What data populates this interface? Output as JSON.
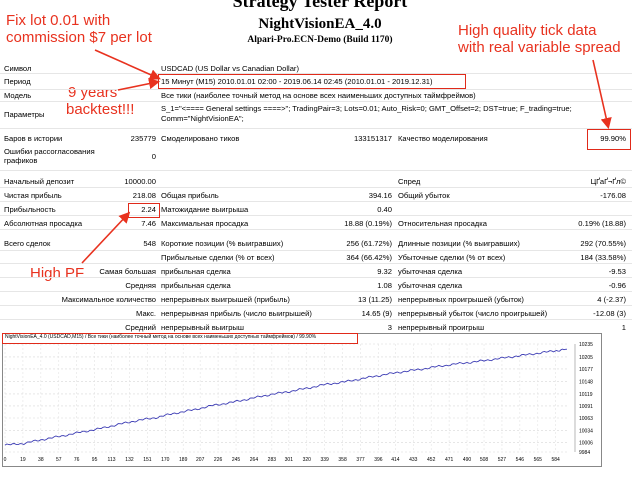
{
  "header": {
    "title": "Strategy Tester Report",
    "name": "NightVisionEA_4.0",
    "server": "Alpari-Pro.ECN-Demo (Build 1170)"
  },
  "annotations": {
    "fix_lot_line1": "Fix lot 0.01 with",
    "fix_lot_line2": "commission $7 per lot",
    "tick_line1": "High quality tick data",
    "tick_line2": "with real variable spread",
    "years_line1": "9 years",
    "years_line2": "backtest!!!",
    "pf": "High PF"
  },
  "report": {
    "symbol_label": "Символ",
    "symbol_value": "USDCAD (US Dollar vs Canadian Dollar)",
    "period_label": "Период",
    "period_value": "15 Минут (M15) 2010.01.01 02:00 - 2019.06.14 02:45 (2010.01.01 - 2019.12.31)",
    "model_label": "Модель",
    "model_value": "Все тики (наиболее точный метод на основе всех наименьших доступных таймфреймов)",
    "params_label": "Параметры",
    "params_value_line1": "S_1=\"<==== General settings ====>\"; TradingPair=3; Lots=0.01; Auto_Risk=0; GMT_Offset=2; DST=true; F_trading=true;",
    "params_value_line2": "Comm=\"NightVisionEA\";",
    "bars_label": "Баров в истории",
    "bars_value": "235779",
    "ticks_label": "Смоделировано тиков",
    "ticks_value": "133151317",
    "quality_label": "Качество моделирования",
    "quality_value": "99.90%",
    "errors_label_line1": "Ошибки рассогласования",
    "errors_label_line2": "графиков",
    "errors_value": "0",
    "deposit_label": "Начальный депозит",
    "deposit_value": "10000.00",
    "spread_label": "Спред",
    "spread_value": "ЦҐаҐ¬Ґ­­л©",
    "net_label": "Чистая прибыль",
    "net_value": "218.08",
    "gross_profit_label": "Общая прибыль",
    "gross_profit_value": "394.16",
    "gross_loss_label": "Общий убыток",
    "gross_loss_value": "-176.08",
    "pf_label": "Прибыльность",
    "pf_value": "2.24",
    "expected_label": "Матожидание выигрыша",
    "expected_value": "0.40",
    "abs_dd_label": "Абсолютная просадка",
    "abs_dd_value": "7.46",
    "max_dd_label": "Максимальная просадка",
    "max_dd_value": "18.88 (0.19%)",
    "rel_dd_label": "Относительная просадка",
    "rel_dd_value": "0.19% (18.88)",
    "total_label": "Всего сделок",
    "total_value": "548",
    "short_label": "Короткие позиции (% выигравших)",
    "short_value": "256 (61.72%)",
    "long_label": "Длинные позиции (% выигравших)",
    "long_value": "292 (70.55%)",
    "win_label": "Прибыльные сделки (% от всех)",
    "win_value": "364 (66.42%)",
    "loss_label": "Убыточные сделки (% от всех)",
    "loss_value": "184 (33.58%)",
    "largest_label": "Самая большая",
    "largest_win_label": "прибыльная сделка",
    "largest_win_value": "9.32",
    "largest_loss_label": "убыточная сделка",
    "largest_loss_value": "-9.53",
    "average_label": "Средняя",
    "average_win_label": "прибыльная сделка",
    "average_win_value": "1.08",
    "average_loss_label": "убыточная сделка",
    "average_loss_value": "-0.96",
    "max_count_label": "Максимальное количество",
    "max_cons_wins_label": "непрерывных выигрышей (прибыль)",
    "max_cons_wins_value": "13 (11.25)",
    "max_cons_losses_label": "непрерывных проигрышей (убыток)",
    "max_cons_losses_value": "4 (-2.37)",
    "max_label": "Макс.",
    "max_cons_profit_label": "непрерывная прибыль (число выигрышей)",
    "max_cons_profit_value": "14.65 (9)",
    "max_cons_loss_label": "непрерывный убыток (число проигрышей)",
    "max_cons_loss_value": "-12.08 (3)",
    "avg_cons_label": "Средний",
    "avg_cons_wins_label": "непрерывный выигрыш",
    "avg_cons_wins_value": "3",
    "avg_cons_losses_label": "непрерывный проигрыш",
    "avg_cons_losses_value": "1"
  },
  "chart_data": {
    "type": "line",
    "title": "NightVisionEA_4.0 (USDCAD,M15) / Все тики (наиболее точный метод на основе всех наименьших доступных таймфреймов) / 99.90%",
    "x_ticks": [
      "0",
      "19",
      "38",
      "57",
      "76",
      "95",
      "113",
      "132",
      "151",
      "170",
      "189",
      "207",
      "226",
      "245",
      "264",
      "283",
      "301",
      "320",
      "339",
      "358",
      "377",
      "396",
      "414",
      "433",
      "452",
      "471",
      "490",
      "508",
      "527",
      "546",
      "565",
      "584"
    ],
    "y_ticks": [
      "10235",
      "10205",
      "10177",
      "10148",
      "10119",
      "10091",
      "10063",
      "10034",
      "10006",
      "9984"
    ],
    "ylim": [
      9984,
      10235
    ],
    "xlim": [
      0,
      596
    ],
    "line_color": "#3c3cb4",
    "series": [
      {
        "x": [
          0,
          20,
          40,
          60,
          80,
          100,
          120,
          140,
          160,
          180,
          200,
          220,
          240,
          260,
          280,
          300,
          320,
          340,
          360,
          380,
          400,
          420,
          440,
          460,
          480,
          500,
          520,
          540,
          560,
          580,
          596
        ],
        "y": [
          10000,
          10004,
          10013,
          10021,
          10030,
          10038,
          10048,
          10057,
          10064,
          10074,
          10082,
          10092,
          10099,
          10108,
          10117,
          10124,
          10132,
          10141,
          10147,
          10155,
          10163,
          10170,
          10176,
          10183,
          10189,
          10194,
          10200,
          10206,
          10212,
          10218,
          10223
        ]
      }
    ]
  }
}
